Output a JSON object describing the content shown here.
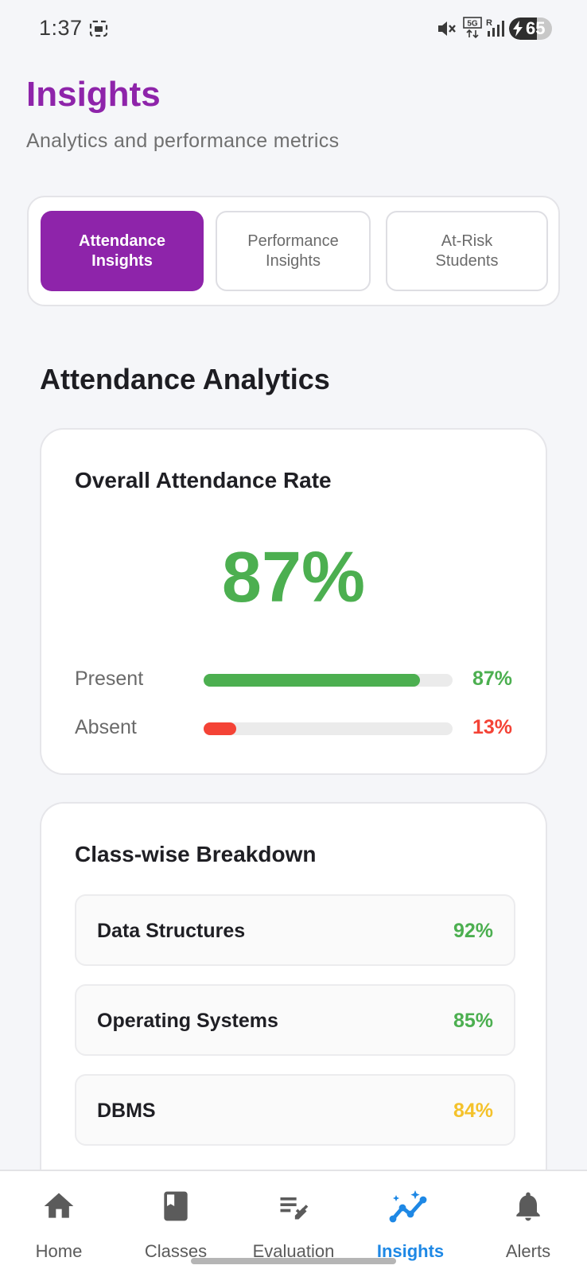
{
  "status_bar": {
    "time": "1:37",
    "network": "5G",
    "battery_level": "65",
    "battery_fraction": 0.65
  },
  "header": {
    "title": "Insights",
    "subtitle": "Analytics and performance metrics"
  },
  "tabs": [
    {
      "line1": "Attendance",
      "line2": "Insights",
      "active": true
    },
    {
      "line1": "Performance",
      "line2": "Insights",
      "active": false
    },
    {
      "line1": "At-Risk",
      "line2": "Students",
      "active": false
    }
  ],
  "section_title": "Attendance Analytics",
  "overall": {
    "title": "Overall Attendance Rate",
    "rate": "87%",
    "present": {
      "label": "Present",
      "value": "87%",
      "fraction": 0.87,
      "color": "#4caf50"
    },
    "absent": {
      "label": "Absent",
      "value": "13%",
      "fraction": 0.13,
      "color": "#f44336"
    }
  },
  "classes": {
    "title": "Class-wise Breakdown",
    "items": [
      {
        "name": "Data Structures",
        "value": "92%",
        "color": "#4caf50"
      },
      {
        "name": "Operating Systems",
        "value": "85%",
        "color": "#4caf50"
      },
      {
        "name": "DBMS",
        "value": "84%",
        "color": "#f4c22b"
      }
    ]
  },
  "nav": {
    "active_color": "#1e88e5",
    "items": [
      {
        "label": "Home",
        "icon": "home-icon"
      },
      {
        "label": "Classes",
        "icon": "book-icon"
      },
      {
        "label": "Evaluation",
        "icon": "edit-list-icon"
      },
      {
        "label": "Insights",
        "icon": "insights-icon",
        "active": true
      },
      {
        "label": "Alerts",
        "icon": "bell-icon"
      }
    ]
  }
}
